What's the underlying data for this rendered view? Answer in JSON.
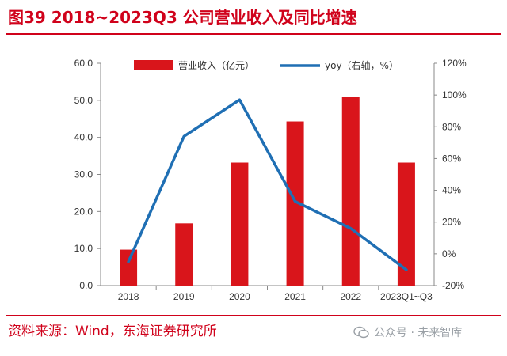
{
  "title": "图39  2018~2023Q3 公司营业收入及同比增速",
  "source": "资料来源：Wind，东海证券研究所",
  "watermark": "公众号 · 未来智库",
  "colors": {
    "accent": "#d0021b",
    "bar": "#d9151b",
    "line": "#1f6fb4"
  },
  "chart_data": {
    "type": "bar+line",
    "categories": [
      "2018",
      "2019",
      "2020",
      "2021",
      "2022",
      "2023Q1~Q3"
    ],
    "series": [
      {
        "name": "营业收入（亿元）",
        "type": "bar",
        "axis": "left",
        "values": [
          9.7,
          16.8,
          33.2,
          44.3,
          51.0,
          33.2
        ]
      },
      {
        "name": "yoy（右轴，%）",
        "type": "line",
        "axis": "right",
        "values": [
          -5,
          74,
          97,
          33,
          16,
          -10
        ]
      }
    ],
    "left_axis": {
      "ylim": [
        0,
        60
      ],
      "ticks": [
        "0.0",
        "10.0",
        "20.0",
        "30.0",
        "40.0",
        "50.0",
        "60.0"
      ]
    },
    "right_axis": {
      "ylim": [
        -20,
        120
      ],
      "ticks": [
        "-20%",
        "0%",
        "20%",
        "40%",
        "60%",
        "80%",
        "100%",
        "120%"
      ]
    },
    "legend_position": "top"
  }
}
